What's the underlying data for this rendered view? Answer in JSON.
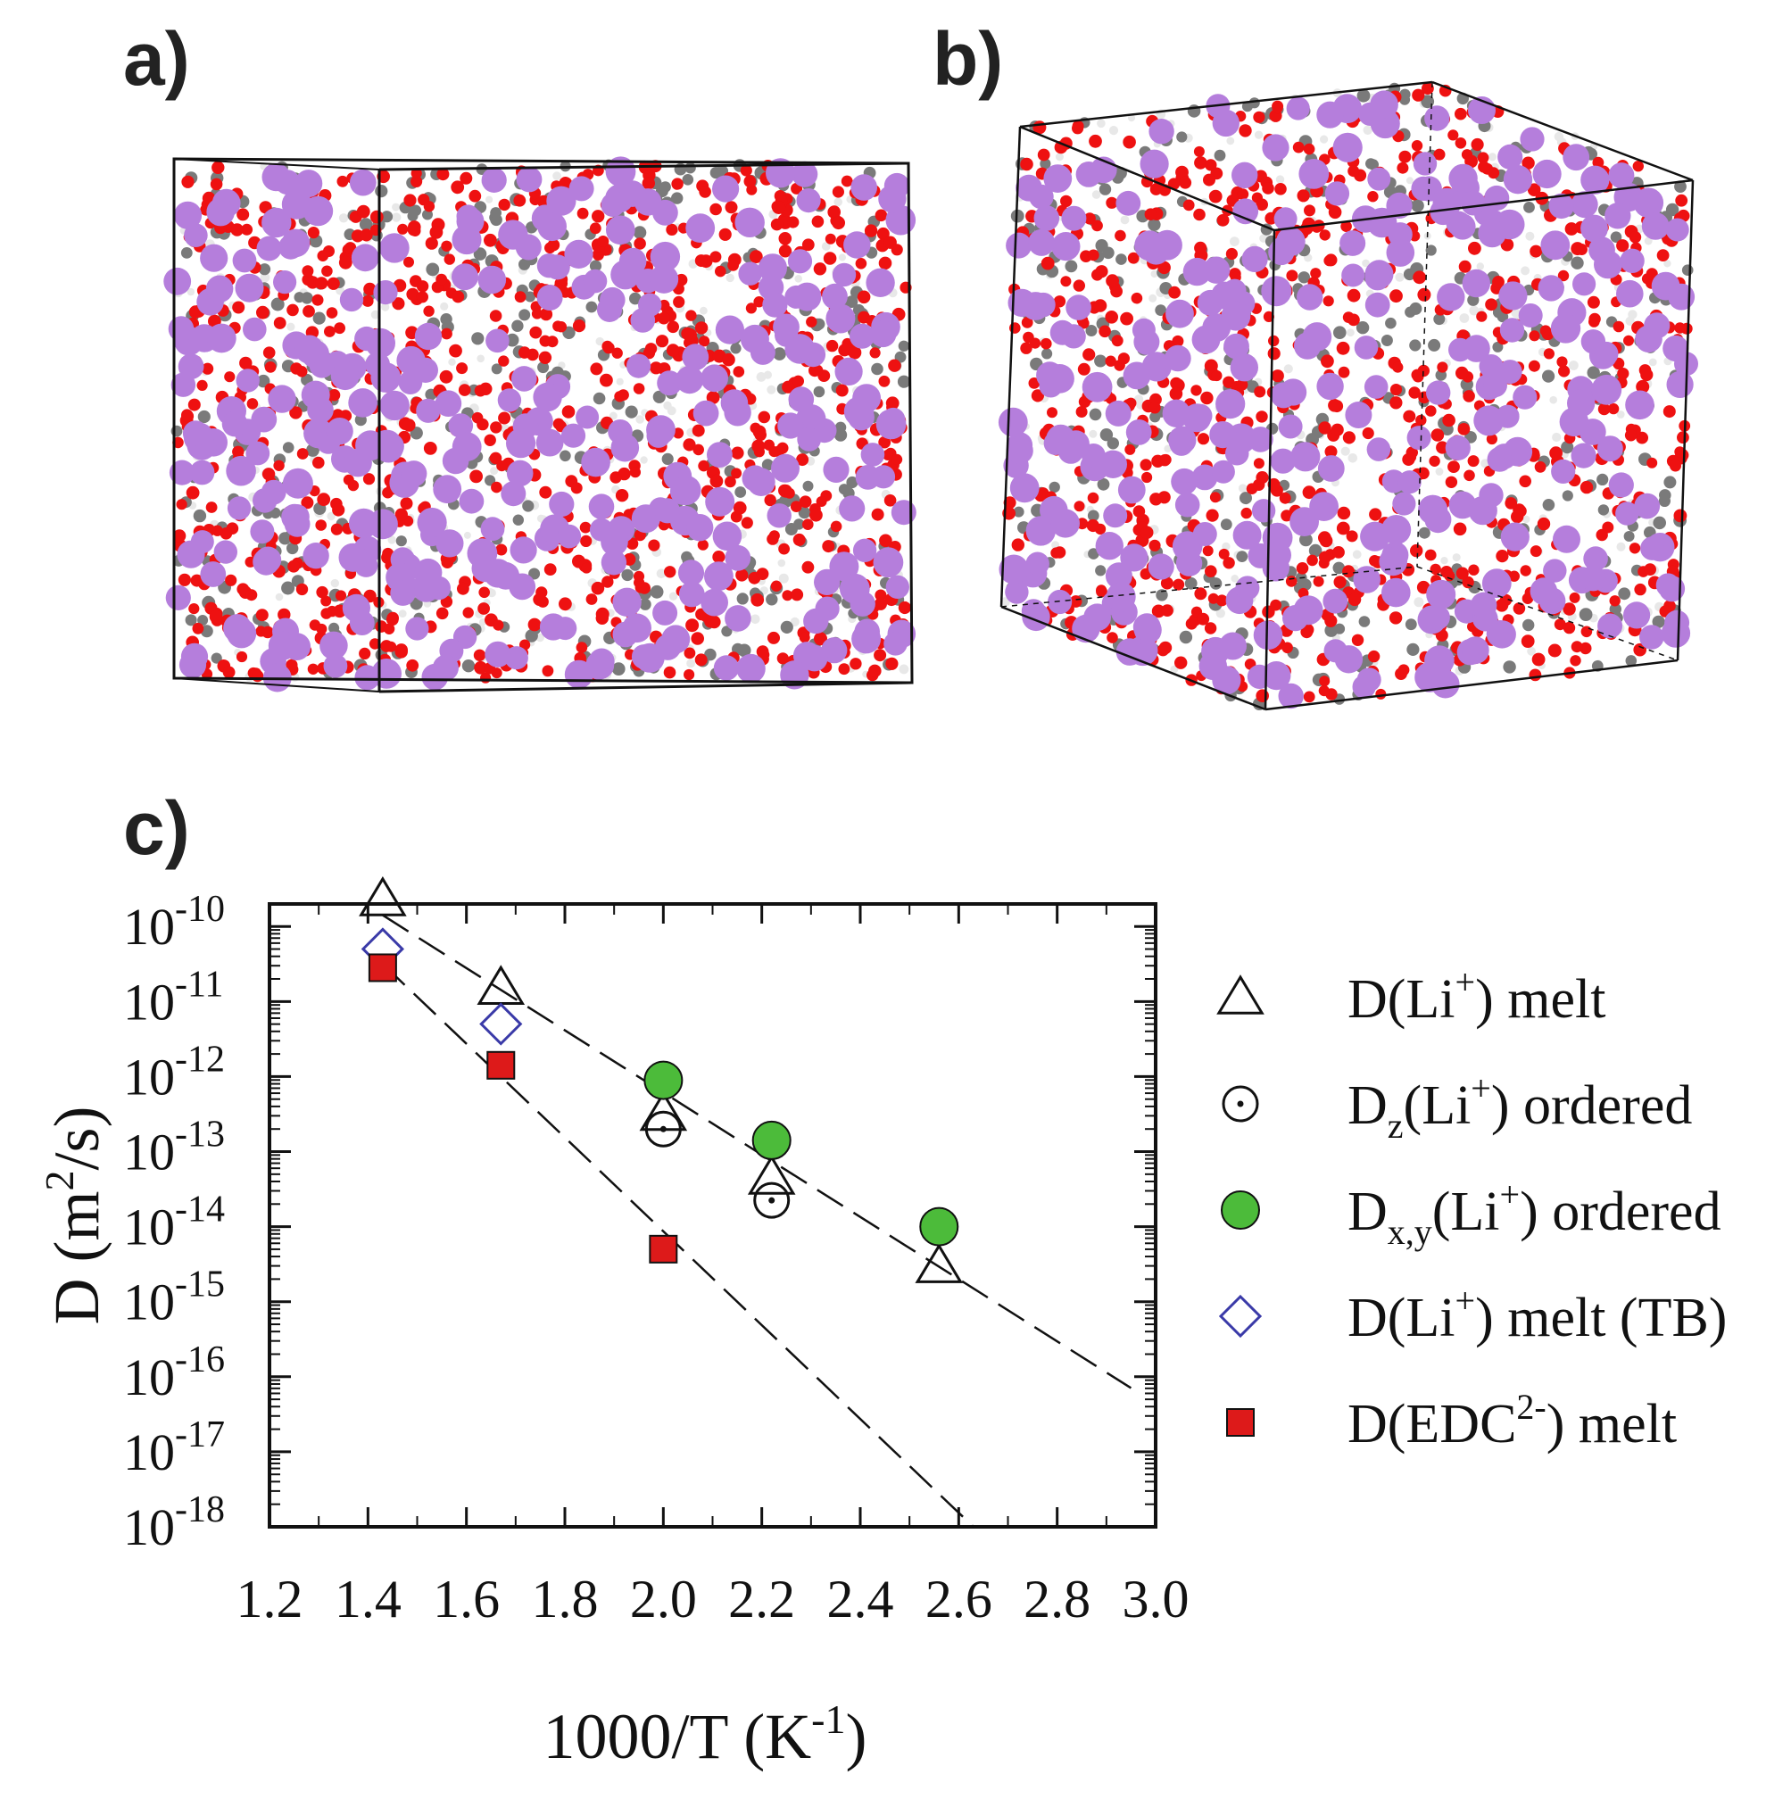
{
  "panels": {
    "a": {
      "label": "a)"
    },
    "b": {
      "label": "b)"
    },
    "c": {
      "label": "c)"
    }
  },
  "colors": {
    "lithium": "#b57edc",
    "oxygen": "#ee1111",
    "carbon": "#7a7a7a",
    "hydrogen": "#e8e8e8",
    "green_marker": "#4cbb3a",
    "blue_marker": "#3a3aa8",
    "red_marker": "#dd1a1a"
  },
  "chart_data": {
    "type": "scatter",
    "xlabel_main": "1000/T (K",
    "xlabel_sup": "-1",
    "xlabel_end": ")",
    "ylabel_main": "D (m",
    "ylabel_sup": "2",
    "ylabel_end": "/s)",
    "xlim": [
      1.2,
      3.0
    ],
    "ylim_log10": [
      -18,
      -9.7
    ],
    "yscale": "log",
    "x_ticks": [
      "1.2",
      "1.4",
      "1.6",
      "1.8",
      "2.0",
      "2.2",
      "2.4",
      "2.6",
      "2.8",
      "3.0"
    ],
    "y_ticks": [
      {
        "base": "10",
        "exp": "-10",
        "value": -10
      },
      {
        "base": "10",
        "exp": "-11",
        "value": -11
      },
      {
        "base": "10",
        "exp": "-12",
        "value": -12
      },
      {
        "base": "10",
        "exp": "-13",
        "value": -13
      },
      {
        "base": "10",
        "exp": "-14",
        "value": -14
      },
      {
        "base": "10",
        "exp": "-15",
        "value": -15
      },
      {
        "base": "10",
        "exp": "-16",
        "value": -16
      },
      {
        "base": "10",
        "exp": "-17",
        "value": -17
      },
      {
        "base": "10",
        "exp": "-18",
        "value": -18
      }
    ],
    "series": [
      {
        "name": "D(Li+) melt",
        "marker": "triangle",
        "x": [
          1.43,
          1.67,
          2.0,
          2.22,
          2.56
        ],
        "log10_y": [
          -9.64,
          -10.82,
          -12.5,
          -13.35,
          -14.53
        ]
      },
      {
        "name": "Dz(Li+) ordered",
        "marker": "circle-dot",
        "x": [
          2.0,
          2.22
        ],
        "log10_y": [
          -12.7,
          -13.65
        ]
      },
      {
        "name": "Dx,y(Li+) ordered",
        "marker": "filled-circle",
        "x": [
          2.0,
          2.22,
          2.56
        ],
        "log10_y": [
          -12.05,
          -12.85,
          -14.0
        ]
      },
      {
        "name": "D(Li+) melt (TB)",
        "marker": "diamond",
        "x": [
          1.43,
          1.67
        ],
        "log10_y": [
          -10.3,
          -11.3
        ]
      },
      {
        "name": "D(EDC2-) melt",
        "marker": "square",
        "x": [
          1.43,
          1.67,
          2.0
        ],
        "log10_y": [
          -10.55,
          -11.85,
          -14.3
        ]
      }
    ],
    "fit_lines": [
      {
        "x": [
          1.43,
          2.95
        ],
        "log10_y": [
          -9.85,
          -16.15
        ]
      },
      {
        "x": [
          1.43,
          2.63
        ],
        "log10_y": [
          -10.5,
          -18.0
        ]
      }
    ],
    "legend": [
      {
        "parts": [
          "D(Li",
          "+",
          ") melt"
        ],
        "marker": "triangle"
      },
      {
        "parts": [
          "D",
          "z",
          "(Li",
          "+",
          ") ordered"
        ],
        "marker": "circle-dot"
      },
      {
        "parts": [
          "D",
          "x,y",
          "(Li",
          "+",
          ") ordered"
        ],
        "marker": "filled-circle"
      },
      {
        "parts": [
          "D(Li",
          "+",
          ") melt (TB)"
        ],
        "marker": "diamond"
      },
      {
        "parts": [
          "D(EDC",
          "2-",
          ") melt"
        ],
        "marker": "square"
      }
    ],
    "legend_position": "right"
  }
}
